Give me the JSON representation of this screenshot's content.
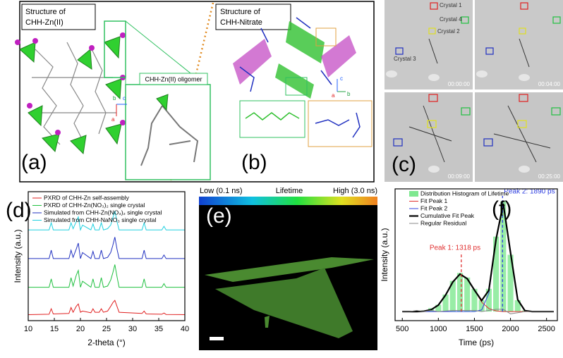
{
  "panels": {
    "a": {
      "label": "(a)",
      "title_line1": "Structure of",
      "title_line2": "CHH-Zn(II)",
      "inset": "CHH-Zn(II) oligomer",
      "axis_b": "b",
      "axis_c": "c",
      "axis_a": "a"
    },
    "b": {
      "label": "(b)",
      "title_line1": "Structure of",
      "title_line2": "CHH-Nitrate",
      "axis_c": "c",
      "axis_a": "a",
      "axis_b": "b"
    },
    "c": {
      "label": "(c)",
      "crystals": [
        "Crystal 1",
        "Crystal 4",
        "Crystal 2",
        "Crystal 3"
      ],
      "timestamps": [
        "00:00:00",
        "00:04:00",
        "00:09:00",
        "00:25:00"
      ]
    },
    "e": {
      "label": "(e)",
      "low": "Low (0.1 ns)",
      "middle": "Lifetime",
      "high": "High (3.0 ns)"
    }
  },
  "chart_data": [
    {
      "type": "line",
      "panel_label": "(d)",
      "x_label": "2-theta (°)",
      "y_label": "Intensity (a.u.)",
      "x": [
        10,
        14,
        14.4,
        14.8,
        17.8,
        18.2,
        18.6,
        19.2,
        19.6,
        20,
        20.4,
        22,
        22.4,
        22.8,
        23.6,
        24,
        24.4,
        25.2,
        25.8,
        26.2,
        26.6,
        27,
        27.4,
        31.8,
        32.2,
        32.6,
        35.6,
        36,
        36.4,
        40
      ],
      "xlim": [
        10,
        40
      ],
      "xticks": [
        10,
        15,
        20,
        25,
        30,
        35,
        40
      ],
      "ylim": [
        0,
        5.4
      ],
      "series": [
        {
          "name": "PXRD of CHH-Zn self-assembly",
          "color": "#e02020",
          "values": [
            0.25,
            0.27,
            0.5,
            0.28,
            0.3,
            0.55,
            0.35,
            0.6,
            0.7,
            0.35,
            0.4,
            0.33,
            0.5,
            0.35,
            0.35,
            0.5,
            0.35,
            0.4,
            0.6,
            0.75,
            0.85,
            0.6,
            0.35,
            0.3,
            0.4,
            0.28,
            0.27,
            0.32,
            0.26,
            0.25
          ]
        },
        {
          "name": "PXRD of CHH-Zn(NO₃)₂ single crystal",
          "color": "#20c040",
          "values": [
            1.4,
            1.4,
            1.75,
            1.4,
            1.4,
            1.8,
            1.45,
            1.9,
            2.1,
            1.4,
            1.65,
            1.4,
            1.75,
            1.4,
            1.4,
            1.8,
            1.4,
            1.45,
            1.7,
            2.0,
            2.35,
            1.85,
            1.4,
            1.4,
            1.75,
            1.4,
            1.4,
            1.55,
            1.4,
            1.4
          ]
        },
        {
          "name": "Simulated from CHH-Zn(NO₃)₂ single crystal",
          "color": "#2030c0",
          "values": [
            2.6,
            2.6,
            2.95,
            2.6,
            2.6,
            2.95,
            2.65,
            3.0,
            3.25,
            2.6,
            2.85,
            2.6,
            2.9,
            2.6,
            2.6,
            2.95,
            2.6,
            2.65,
            2.85,
            3.15,
            3.5,
            3.0,
            2.6,
            2.6,
            2.95,
            2.6,
            2.6,
            2.75,
            2.6,
            2.6
          ]
        },
        {
          "name": "Simulated from CHH-NaNO₃ single crystal",
          "color": "#20d0e0",
          "values": [
            3.8,
            3.8,
            4.1,
            3.8,
            3.8,
            4.1,
            3.85,
            4.15,
            4.35,
            3.8,
            4.0,
            3.8,
            4.05,
            3.8,
            3.8,
            4.1,
            3.8,
            3.85,
            4.0,
            4.3,
            4.6,
            4.15,
            3.8,
            3.8,
            4.1,
            3.8,
            3.8,
            3.95,
            3.8,
            3.8
          ]
        }
      ]
    },
    {
      "type": "line",
      "panel_label": "(f)",
      "x_label": "Time (ps)",
      "y_label": "Intensity (a.u.)",
      "x": [
        500,
        600,
        700,
        800,
        900,
        1000,
        1100,
        1200,
        1300,
        1400,
        1500,
        1600,
        1700,
        1800,
        1900,
        2000,
        2100,
        2200,
        2300,
        2400,
        2500,
        2600
      ],
      "xlim": [
        400,
        2650
      ],
      "xticks": [
        500,
        1000,
        1500,
        2000,
        2500
      ],
      "ylim": [
        -0.08,
        1.08
      ],
      "series": [
        {
          "name": "Distribution Histogram of Lifetime",
          "color": "#7ee890",
          "mark": "bar",
          "values": [
            0,
            0,
            0.01,
            0.01,
            0.03,
            0.06,
            0.15,
            0.27,
            0.34,
            0.3,
            0.2,
            0.1,
            0.2,
            0.66,
            0.97,
            0.5,
            0.1,
            0.01,
            0,
            0,
            0,
            0
          ]
        },
        {
          "name": "Fit Peak 1",
          "color": "#e03030",
          "values": [
            0,
            0,
            0,
            0.003,
            0.016,
            0.057,
            0.145,
            0.26,
            0.33,
            0.29,
            0.19,
            0.083,
            0.027,
            0.006,
            0,
            0,
            0,
            0,
            0,
            0,
            0,
            0
          ]
        },
        {
          "name": "Fit Peak 2",
          "color": "#3040e0",
          "values": [
            0,
            0,
            0,
            0,
            0,
            0,
            0,
            0,
            0,
            0,
            0,
            0.014,
            0.16,
            0.63,
            0.95,
            0.52,
            0.105,
            0.008,
            0,
            0,
            0,
            0
          ]
        },
        {
          "name": "Cumulative Fit Peak",
          "color": "#000000",
          "width": 2.2,
          "values": [
            0,
            0,
            0,
            0.003,
            0.016,
            0.057,
            0.145,
            0.26,
            0.33,
            0.29,
            0.19,
            0.097,
            0.187,
            0.636,
            0.95,
            0.52,
            0.105,
            0.008,
            0,
            0,
            0,
            0
          ]
        },
        {
          "name": "Regular Residual",
          "color": "#888888",
          "values": [
            0,
            0,
            0.01,
            0,
            0.01,
            0,
            0.005,
            0.01,
            0.01,
            0.01,
            0.01,
            0,
            0.01,
            0.02,
            0.02,
            -0.02,
            -0.01,
            0,
            0,
            0,
            0,
            0
          ]
        }
      ],
      "annotations": [
        {
          "value": 1318,
          "label": "Peak 1: 1318 ps",
          "color": "#e03030"
        },
        {
          "value": 1890,
          "label": "Peak 2: 1890 ps",
          "color": "#3040e0"
        }
      ]
    }
  ]
}
